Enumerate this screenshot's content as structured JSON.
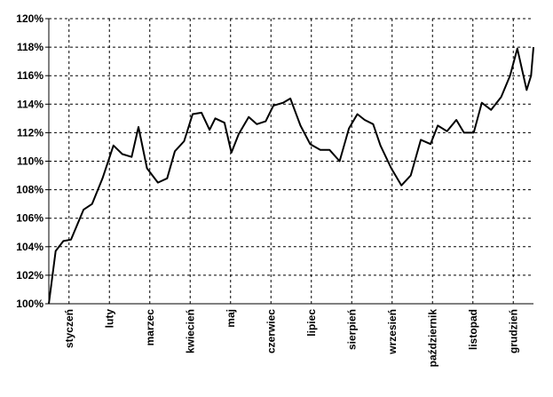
{
  "chart_data": {
    "type": "line",
    "y_ticks": [
      "100%",
      "102%",
      "104%",
      "106%",
      "108%",
      "110%",
      "112%",
      "114%",
      "116%",
      "118%",
      "120%"
    ],
    "ylim": [
      100,
      120
    ],
    "categories": [
      "styczeń",
      "luty",
      "marzec",
      "kwiecień",
      "maj",
      "czerwiec",
      "lipiec",
      "sierpień",
      "wrzesień",
      "październik",
      "listopad",
      "grudzień"
    ],
    "grid": "vertical and horizontal dashed",
    "legend": "none",
    "series": [
      {
        "x": [
          0,
          0.17,
          0.36,
          0.55,
          0.86,
          1.07,
          1.33,
          1.6,
          1.82,
          2.05,
          2.22,
          2.43,
          2.7,
          2.93,
          3.12,
          3.35,
          3.56,
          3.78,
          3.98,
          4.12,
          4.35,
          4.52,
          4.7,
          4.95,
          5.15,
          5.37,
          5.56,
          5.8,
          5.98,
          6.23,
          6.47,
          6.72,
          6.95,
          7.2,
          7.43,
          7.64,
          7.82,
          8.03,
          8.21,
          8.48,
          8.73,
          8.96,
          9.21,
          9.45,
          9.63,
          9.86,
          10.09,
          10.28,
          10.52,
          10.72,
          10.95,
          11.2,
          11.42,
          11.6,
          11.83,
          11.94,
          12.0
        ],
        "values": [
          100.0,
          103.7,
          104.4,
          104.5,
          106.6,
          107.0,
          108.8,
          111.1,
          110.5,
          110.3,
          112.4,
          109.5,
          108.5,
          108.8,
          110.7,
          111.4,
          113.3,
          113.4,
          112.2,
          113.0,
          112.7,
          110.6,
          111.9,
          113.1,
          112.6,
          112.8,
          113.9,
          114.1,
          114.4,
          112.5,
          111.2,
          110.8,
          110.8,
          110.0,
          112.3,
          113.3,
          112.9,
          112.6,
          111.1,
          109.5,
          108.3,
          109.0,
          111.5,
          111.2,
          112.5,
          112.1,
          112.9,
          112.0,
          112.0,
          114.1,
          113.6,
          114.5,
          116.0,
          117.9,
          115.0,
          116.0,
          118.0
        ]
      }
    ]
  }
}
